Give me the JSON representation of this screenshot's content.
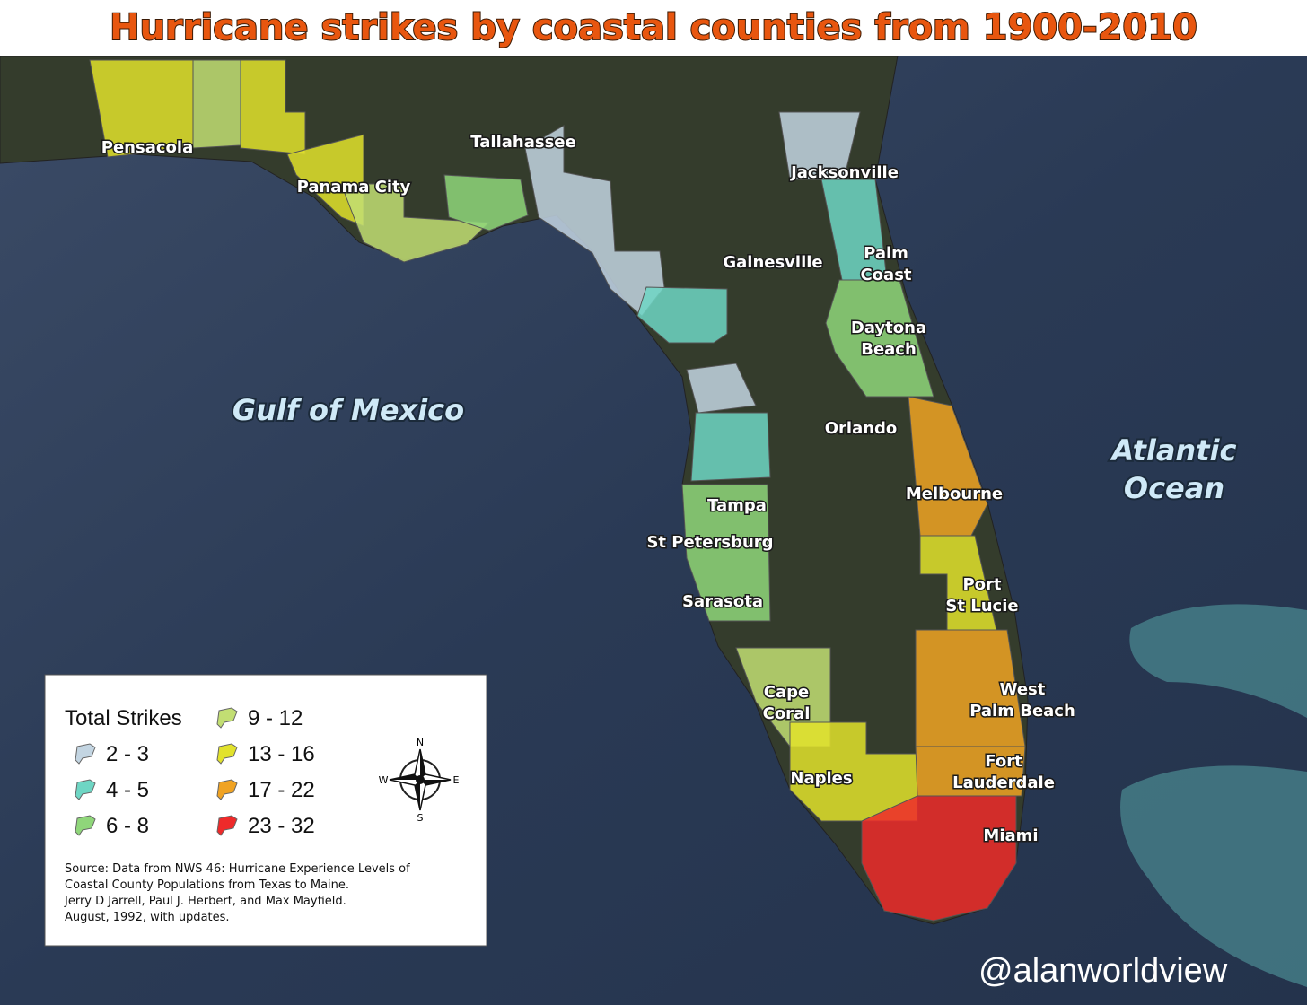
{
  "title": "Hurricane strikes by coastal counties from 1900-2010",
  "map": {
    "water_labels": [
      [
        "Gulf of Mexico"
      ],
      [
        "Atlantic",
        "Ocean"
      ]
    ],
    "city_labels": [
      [
        "Pensacola"
      ],
      [
        "Panama City"
      ],
      [
        "Tallahassee"
      ],
      [
        "Jacksonville"
      ],
      [
        "Gainesville"
      ],
      [
        "Palm",
        "Coast"
      ],
      [
        "Daytona",
        "Beach"
      ],
      [
        "Orlando"
      ],
      [
        "Melbourne"
      ],
      [
        "Tampa"
      ],
      [
        "St Petersburg"
      ],
      [
        "Port",
        "St Lucie"
      ],
      [
        "Sarasota"
      ],
      [
        "Cape",
        "Coral"
      ],
      [
        "West",
        "Palm Beach"
      ],
      [
        "Naples"
      ],
      [
        "Fort",
        "Lauderdale"
      ],
      [
        "Miami"
      ]
    ]
  },
  "legend": {
    "title": "Total Strikes",
    "items": [
      {
        "label": "2 - 3",
        "color": "#c3d5e2"
      },
      {
        "label": "4 - 5",
        "color": "#6ed6c4"
      },
      {
        "label": "6 - 8",
        "color": "#8fd67a"
      },
      {
        "label": "9 - 12",
        "color": "#c2de73"
      },
      {
        "label": "13 - 16",
        "color": "#e2e22c"
      },
      {
        "label": "17 - 22",
        "color": "#f0a323"
      },
      {
        "label": "23 - 32",
        "color": "#ee2a2a"
      }
    ]
  },
  "compass": {
    "n": "N",
    "e": "E",
    "s": "S",
    "w": "W"
  },
  "source": [
    "Source: Data from NWS 46: Hurricane Experience Levels of",
    " Coastal County Populations from Texas to Maine.",
    "Jerry D Jarrell, Paul J. Herbert, and Max Mayfield.",
    "August, 1992, with updates."
  ],
  "watermark": "@alanworldview"
}
